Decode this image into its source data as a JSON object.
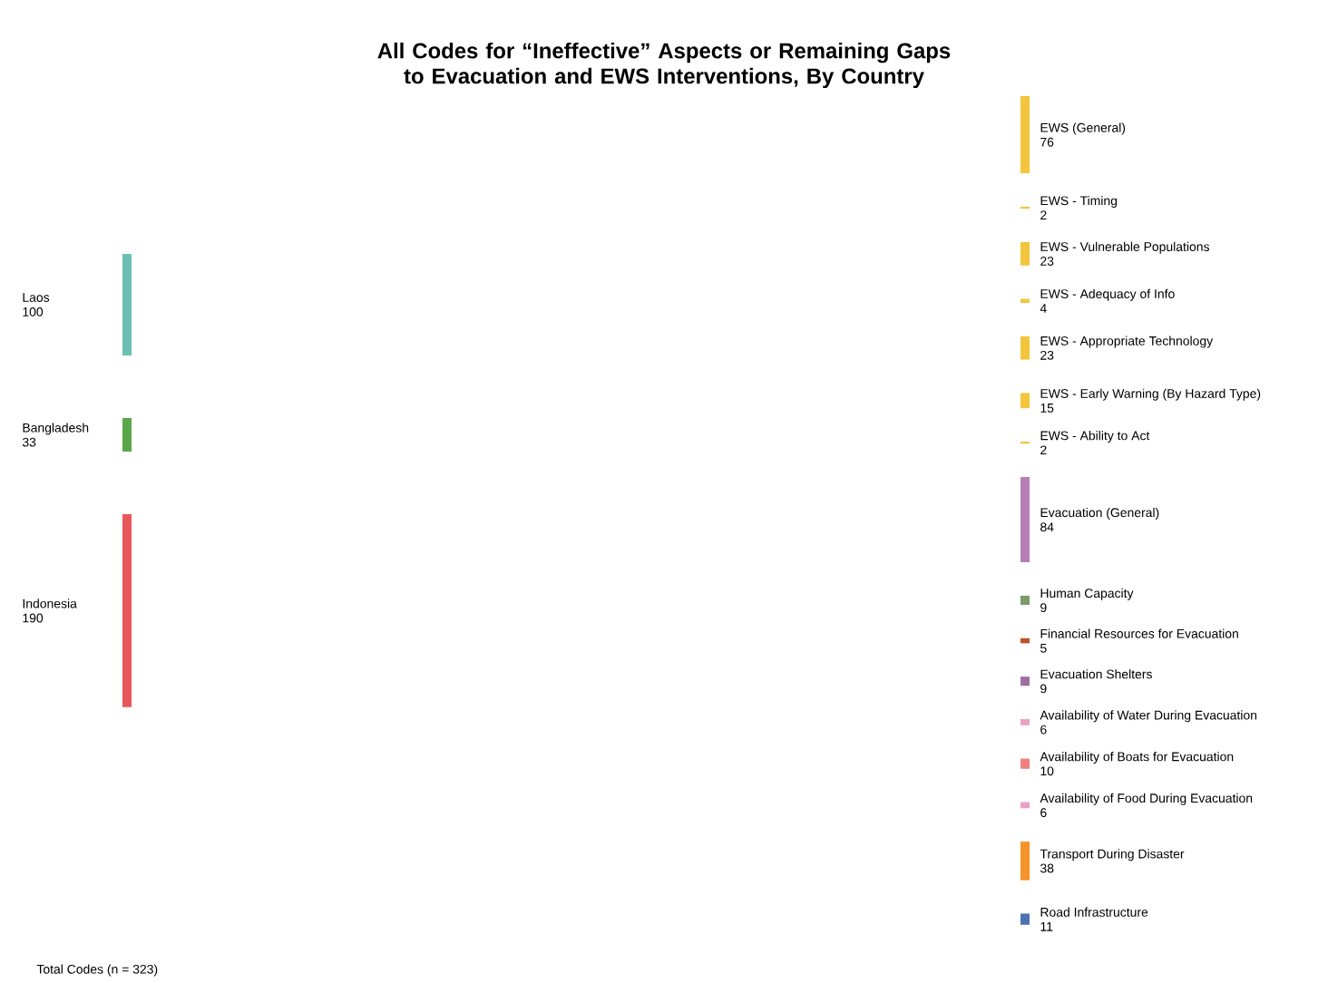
{
  "chart_data": [
    {
      "type": "other",
      "title": "All Codes for “Ineffective” Aspects or Remaining Gaps to Evacuation and EWS Interventions, By Country",
      "categories": [
        "Laos",
        "Bangladesh",
        "Indonesia"
      ],
      "values": [
        100,
        33,
        190
      ],
      "colors": [
        "#6bbfb3",
        "#5aa64a",
        "#e8575a"
      ],
      "data_labels": true,
      "annotations": [
        "Total Codes (n = 323)"
      ]
    },
    {
      "type": "other",
      "categories": [
        "EWS (General)",
        "EWS - Timing",
        "EWS - Vulnerable Populations",
        "EWS - Adequacy of Info",
        "EWS - Appropriate Technology",
        "EWS - Early Warning (By Hazard Type)",
        "EWS - Ability to Act",
        "Evacuation (General)",
        "Human Capacity",
        "Financial Resources for Evacuation",
        "Evacuation Shelters",
        "Availability of Water During Evacuation",
        "Availability of Boats for Evacuation",
        "Availability of Food During Evacuation",
        "Transport During Disaster",
        "Road Infrastructure"
      ],
      "values": [
        76,
        2,
        23,
        4,
        23,
        15,
        2,
        84,
        9,
        5,
        9,
        6,
        10,
        6,
        38,
        11
      ],
      "colors": [
        "#f2c53d",
        "#f2c53d",
        "#f2c53d",
        "#f2c53d",
        "#f2c53d",
        "#f2c53d",
        "#f2c53d",
        "#b57fb5",
        "#7a9a6a",
        "#c0502a",
        "#9d6fa0",
        "#e6a0c4",
        "#f08080",
        "#e8a0c8",
        "#f5922a",
        "#4a73b0"
      ],
      "data_labels": true
    }
  ]
}
